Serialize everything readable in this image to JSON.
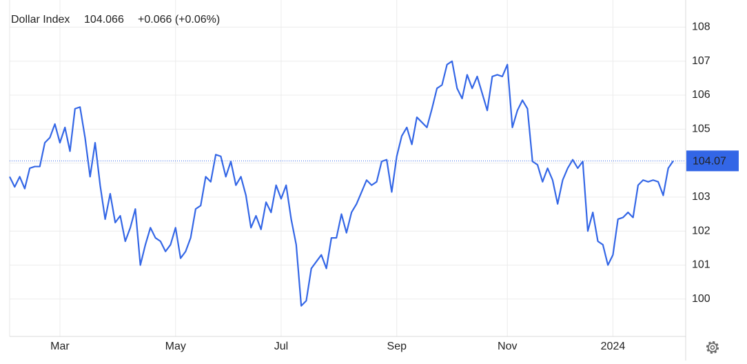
{
  "chart_data": {
    "type": "line",
    "title": "Dollar Index",
    "price_text": "104.066",
    "change_text": "+0.066 (+0.06%)",
    "price_color": "#3b6fe0",
    "change_color": "#33b74a",
    "color": "#3366e6",
    "grid": true,
    "ylim": [
      98.9,
      108.8
    ],
    "yticks": [
      100,
      101,
      102,
      103,
      104,
      105,
      106,
      107,
      108
    ],
    "last_value": {
      "value": 104.066,
      "label": "104.07"
    },
    "categories": [
      null,
      null,
      null,
      null,
      null,
      null,
      null,
      null,
      null,
      null,
      "Mar",
      null,
      null,
      null,
      null,
      null,
      null,
      null,
      null,
      null,
      null,
      null,
      null,
      null,
      null,
      null,
      null,
      null,
      null,
      null,
      null,
      null,
      null,
      "May",
      null,
      null,
      null,
      null,
      null,
      null,
      null,
      null,
      null,
      null,
      null,
      null,
      null,
      null,
      null,
      null,
      null,
      null,
      null,
      null,
      "Jul",
      null,
      null,
      null,
      null,
      null,
      null,
      null,
      null,
      null,
      null,
      null,
      null,
      null,
      null,
      null,
      null,
      null,
      null,
      null,
      null,
      null,
      null,
      "Sep",
      null,
      null,
      null,
      null,
      null,
      null,
      null,
      null,
      null,
      null,
      null,
      null,
      null,
      null,
      null,
      null,
      null,
      null,
      null,
      null,
      null,
      "Nov",
      null,
      null,
      null,
      null,
      null,
      null,
      null,
      null,
      null,
      null,
      null,
      null,
      null,
      null,
      null,
      null,
      null,
      null,
      null,
      null,
      "2024",
      null,
      null,
      null,
      null,
      null,
      null,
      null,
      null,
      null,
      null,
      null,
      null
    ],
    "values": [
      103.6,
      103.3,
      103.6,
      103.25,
      103.85,
      103.9,
      103.9,
      104.6,
      104.75,
      105.15,
      104.6,
      105.05,
      104.35,
      105.6,
      105.65,
      104.75,
      103.6,
      104.6,
      103.35,
      102.35,
      103.1,
      102.25,
      102.45,
      101.7,
      102.1,
      102.65,
      101.0,
      101.6,
      102.1,
      101.8,
      101.7,
      101.4,
      101.6,
      102.1,
      101.2,
      101.4,
      101.8,
      102.65,
      102.75,
      103.6,
      103.45,
      104.25,
      104.2,
      103.6,
      104.05,
      103.35,
      103.6,
      103.05,
      102.1,
      102.45,
      102.05,
      102.85,
      102.55,
      103.35,
      102.95,
      103.35,
      102.35,
      101.6,
      99.8,
      99.95,
      100.9,
      101.1,
      101.3,
      100.9,
      101.8,
      101.8,
      102.5,
      101.95,
      102.55,
      102.8,
      103.15,
      103.5,
      103.35,
      103.45,
      104.05,
      104.1,
      103.15,
      104.2,
      104.8,
      105.05,
      104.55,
      105.35,
      105.2,
      105.05,
      105.6,
      106.2,
      106.3,
      106.9,
      107.0,
      106.2,
      105.9,
      106.6,
      106.2,
      106.55,
      106.05,
      105.55,
      106.55,
      106.6,
      106.55,
      106.9,
      105.05,
      105.55,
      105.85,
      105.6,
      104.05,
      103.95,
      103.45,
      103.85,
      103.5,
      102.8,
      103.5,
      103.85,
      104.1,
      103.85,
      104.05,
      102.0,
      102.55,
      101.7,
      101.6,
      101.0,
      101.3,
      102.35,
      102.4,
      102.55,
      102.4,
      103.35,
      103.5,
      103.45,
      103.5,
      103.45,
      103.05,
      103.85,
      104.066
    ]
  }
}
